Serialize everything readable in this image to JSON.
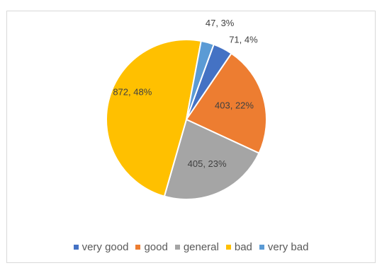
{
  "chart_data": {
    "type": "pie",
    "slices": [
      {
        "label": "very good",
        "value": 71,
        "percent": "4%",
        "data_label": "71, 4%",
        "color": "#4472c4"
      },
      {
        "label": "good",
        "value": 403,
        "percent": "22%",
        "data_label": "403, 22%",
        "color": "#ed7d31"
      },
      {
        "label": "general",
        "value": 405,
        "percent": "23%",
        "data_label": "405, 23%",
        "color": "#a5a5a5"
      },
      {
        "label": "bad",
        "value": 872,
        "percent": "48%",
        "data_label": "872, 48%",
        "color": "#ffc000"
      },
      {
        "label": "very bad",
        "value": 47,
        "percent": "3%",
        "data_label": "47, 3%",
        "color": "#5b9bd5"
      }
    ],
    "legend_position": "bottom"
  }
}
